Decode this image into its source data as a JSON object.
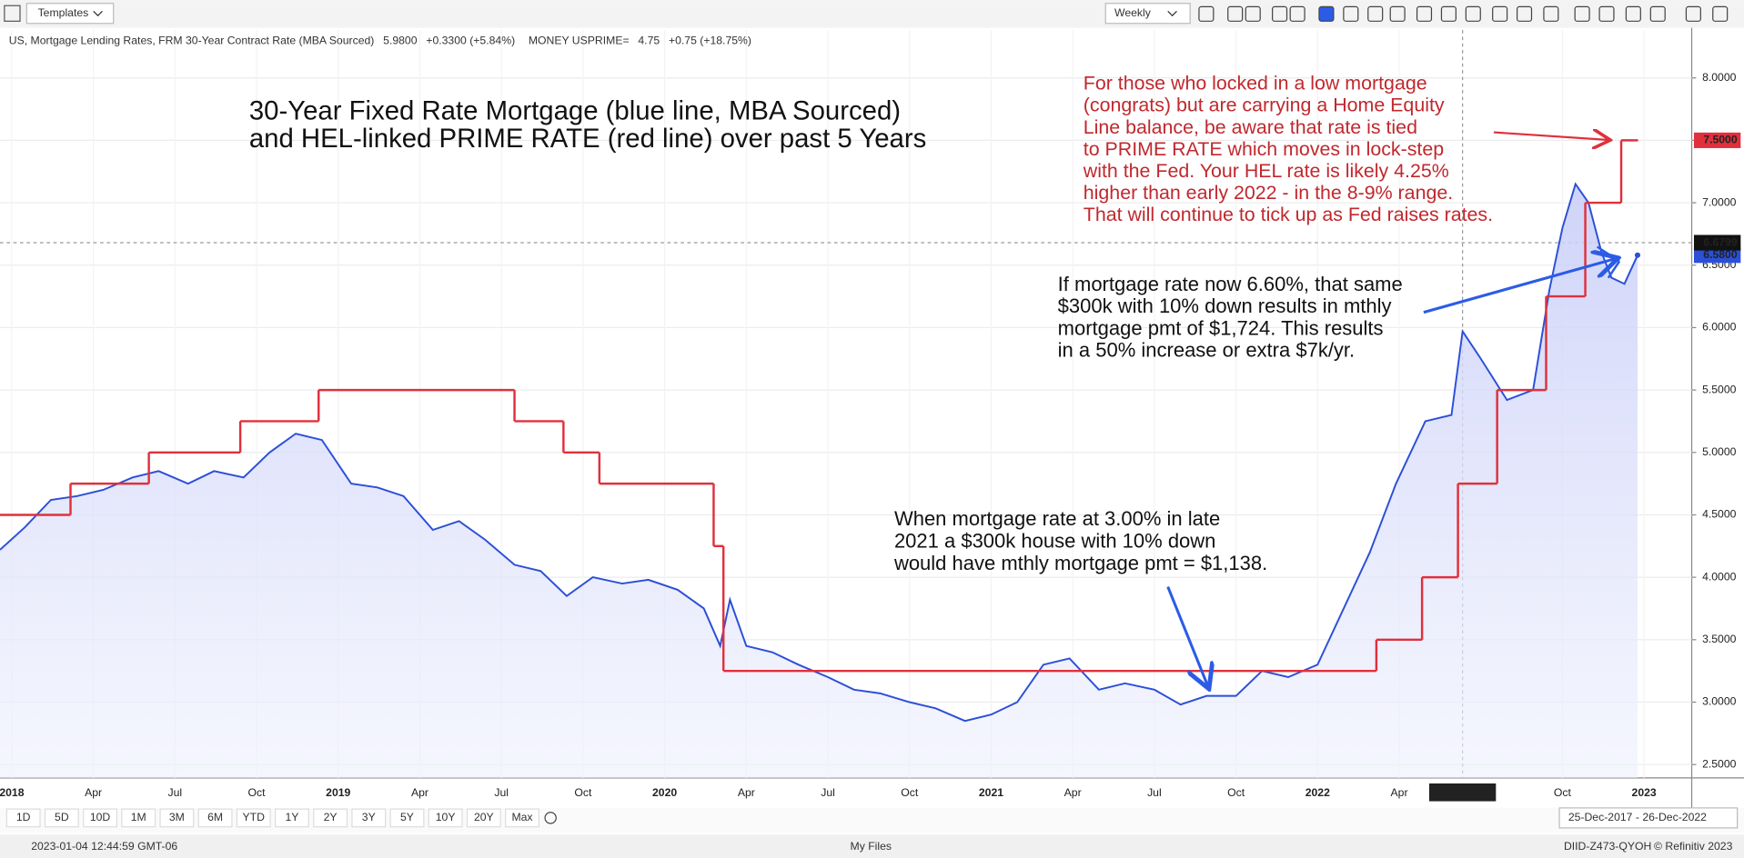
{
  "ui": {
    "templates": "Templates",
    "interval": "Weekly",
    "range_buttons": [
      "1D",
      "5D",
      "10D",
      "1M",
      "3M",
      "6M",
      "YTD",
      "1Y",
      "2Y",
      "3Y",
      "5Y",
      "10Y",
      "20Y",
      "Max"
    ],
    "date_range": "25-Dec-2017 - 26-Dec-2022",
    "timestamp": "2023-01-04 12:44:59 GMT-06",
    "files": "My Files",
    "session_id": "DIID-Z473-QYOH",
    "copyright": "© Refinitiv 2023"
  },
  "chart_data": {
    "type": "line",
    "title": [
      "30-Year Fixed Rate Mortgage (blue line, MBA Sourced)",
      "and HEL-linked PRIME RATE (red line) over past 5 Years"
    ],
    "annotations": [
      {
        "color": "#c0282e",
        "lines": [
          "For those who locked in a low mortgage",
          "(congrats) but are carrying a Home Equity",
          "Line balance, be aware that rate is tied",
          "to PRIME RATE which moves in lock-step",
          "with the Fed.  Your HEL rate is likely 4.25%",
          "higher than early 2022 - in the 8-9% range.",
          "That will continue to tick up as Fed raises rates."
        ]
      },
      {
        "color": "#111111",
        "lines": [
          "If mortgage rate now 6.60%, that same",
          "$300k with 10% down results in mthly",
          "mortgage pmt of $1,724.  This results",
          "in a 50% increase or extra $7k/yr."
        ]
      },
      {
        "color": "#111111",
        "lines": [
          "When mortgage rate at 3.00% in late",
          "2021 a $300k house with 10% down",
          "would have mthly mortgage pmt = $1,138."
        ]
      }
    ],
    "xlim": [
      2017.964,
      2023.146
    ],
    "xticks": [
      {
        "value": 2018,
        "label": "2018"
      },
      {
        "value": 2018.25,
        "label": "Apr"
      },
      {
        "value": 2018.5,
        "label": "Jul"
      },
      {
        "value": 2018.75,
        "label": "Oct"
      },
      {
        "value": 2019,
        "label": "2019"
      },
      {
        "value": 2019.25,
        "label": "Apr"
      },
      {
        "value": 2019.5,
        "label": "Jul"
      },
      {
        "value": 2019.75,
        "label": "Oct"
      },
      {
        "value": 2020,
        "label": "2020"
      },
      {
        "value": 2020.25,
        "label": "Apr"
      },
      {
        "value": 2020.5,
        "label": "Jul"
      },
      {
        "value": 2020.75,
        "label": "Oct"
      },
      {
        "value": 2021,
        "label": "2021"
      },
      {
        "value": 2021.25,
        "label": "Apr"
      },
      {
        "value": 2021.5,
        "label": "Jul"
      },
      {
        "value": 2021.75,
        "label": "Oct"
      },
      {
        "value": 2022,
        "label": "2022"
      },
      {
        "value": 2022.25,
        "label": "Apr"
      },
      {
        "value": 2022.75,
        "label": "Oct"
      },
      {
        "value": 2023,
        "label": "2023"
      }
    ],
    "ylim": [
      2.393,
      8.383
    ],
    "yticks": [
      {
        "value": 2.5,
        "label": "2.5000"
      },
      {
        "value": 3,
        "label": "3.0000"
      },
      {
        "value": 3.5,
        "label": "3.5000"
      },
      {
        "value": 4,
        "label": "4.0000"
      },
      {
        "value": 4.5,
        "label": "4.5000"
      },
      {
        "value": 5,
        "label": "5.0000"
      },
      {
        "value": 5.5,
        "label": "5.5000"
      },
      {
        "value": 6,
        "label": "6.0000"
      },
      {
        "value": 6.5,
        "label": "6.5000"
      },
      {
        "value": 7,
        "label": "7.0000"
      },
      {
        "value": 7.5,
        "label": "7.5000"
      },
      {
        "value": 8,
        "label": "8.0000"
      }
    ],
    "grid": true,
    "crosshair": {
      "x": 2022.444,
      "x_label": "13 Jun '22",
      "y": 6.6799
    },
    "series": [
      {
        "name": "US, Mortgage Lending Rates, FRM 30-Year Contract Rate (MBA Sourced)",
        "legend_value": "5.9800",
        "legend_change": "+0.3300 (+5.84%)",
        "price_label": "6.5800",
        "color": "#2b4fd8",
        "fill": "#d9ddfa",
        "x": [
          2017.964,
          2018.04,
          2018.12,
          2018.2,
          2018.28,
          2018.37,
          2018.45,
          2018.54,
          2018.62,
          2018.71,
          2018.79,
          2018.87,
          2018.95,
          2019.04,
          2019.12,
          2019.2,
          2019.29,
          2019.37,
          2019.45,
          2019.54,
          2019.62,
          2019.7,
          2019.78,
          2019.87,
          2019.95,
          2020.04,
          2020.12,
          2020.17,
          2020.2,
          2020.25,
          2020.33,
          2020.41,
          2020.5,
          2020.58,
          2020.66,
          2020.75,
          2020.83,
          2020.92,
          2021.0,
          2021.08,
          2021.16,
          2021.24,
          2021.33,
          2021.41,
          2021.5,
          2021.58,
          2021.66,
          2021.75,
          2021.83,
          2021.91,
          2022.0,
          2022.08,
          2022.16,
          2022.24,
          2022.33,
          2022.41,
          2022.444,
          2022.5,
          2022.58,
          2022.66,
          2022.71,
          2022.75,
          2022.79,
          2022.83,
          2022.87,
          2022.9,
          2022.94,
          2022.98
        ],
        "values": [
          4.22,
          4.4,
          4.62,
          4.65,
          4.7,
          4.8,
          4.85,
          4.75,
          4.85,
          4.8,
          5.0,
          5.15,
          5.1,
          4.75,
          4.72,
          4.65,
          4.38,
          4.45,
          4.3,
          4.1,
          4.05,
          3.85,
          4.0,
          3.95,
          3.98,
          3.9,
          3.75,
          3.45,
          3.82,
          3.45,
          3.4,
          3.3,
          3.2,
          3.1,
          3.07,
          3.0,
          2.95,
          2.85,
          2.9,
          3.0,
          3.3,
          3.35,
          3.1,
          3.15,
          3.1,
          2.98,
          3.05,
          3.05,
          3.25,
          3.2,
          3.3,
          3.75,
          4.2,
          4.75,
          5.25,
          5.3,
          5.97,
          5.75,
          5.42,
          5.5,
          6.3,
          6.8,
          7.15,
          7.0,
          6.6,
          6.4,
          6.35,
          6.58
        ]
      },
      {
        "name": "MONEY USPRIME=",
        "legend_value": "4.75",
        "legend_change": "+0.75 (+18.75%)",
        "price_label": "7.5000",
        "color": "#e0303c",
        "step": true,
        "x": [
          2017.964,
          2018.18,
          2018.42,
          2018.7,
          2018.94,
          2019.54,
          2019.69,
          2019.8,
          2020.15,
          2020.18,
          2022.18,
          2022.32,
          2022.43,
          2022.55,
          2022.7,
          2022.82,
          2022.93,
          2022.98
        ],
        "values": [
          4.5,
          4.75,
          5.0,
          5.25,
          5.5,
          5.25,
          5.0,
          4.75,
          4.25,
          3.25,
          3.5,
          4.0,
          4.75,
          5.5,
          6.25,
          7.0,
          7.5,
          7.5
        ]
      }
    ]
  }
}
